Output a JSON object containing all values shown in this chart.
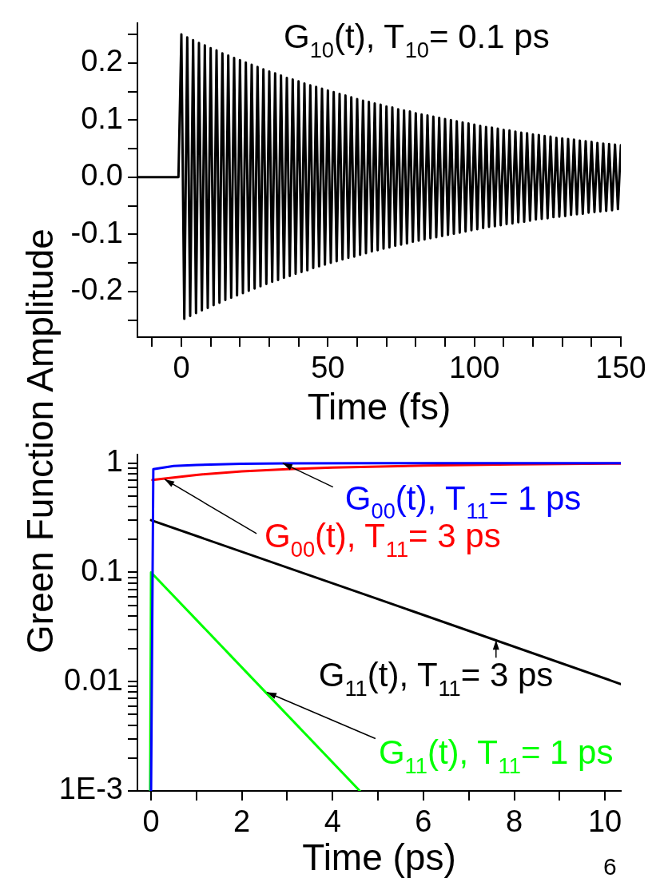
{
  "chart_data": [
    {
      "type": "line",
      "xlabel": "Time (fs)",
      "ylabel": "Green Function Amplitude",
      "marker": "none",
      "xlim": [
        -15,
        150
      ],
      "ylim": [
        -0.28,
        0.27
      ],
      "xticks": [
        {
          "value": -10,
          "label": null
        },
        0,
        {
          "value": 10,
          "label": null
        },
        {
          "value": 20,
          "label": null
        },
        {
          "value": 30,
          "label": null
        },
        {
          "value": 40,
          "label": null
        },
        50,
        {
          "value": 60,
          "label": null
        },
        {
          "value": 70,
          "label": null
        },
        {
          "value": 80,
          "label": null
        },
        {
          "value": 90,
          "label": null
        },
        100,
        {
          "value": 110,
          "label": null
        },
        {
          "value": 120,
          "label": null
        },
        {
          "value": 130,
          "label": null
        },
        {
          "value": 140,
          "label": null
        },
        150
      ],
      "yticks": [
        {
          "value": -0.25,
          "label": null
        },
        {
          "value": -0.2,
          "label": "-0.2"
        },
        {
          "value": -0.15,
          "label": null
        },
        {
          "value": -0.1,
          "label": "-0.1"
        },
        {
          "value": -0.05,
          "label": null
        },
        {
          "value": 0,
          "label": "0.0"
        },
        {
          "value": 0.05,
          "label": null
        },
        0.1,
        {
          "value": 0.15,
          "label": null
        },
        0.2,
        {
          "value": 0.25,
          "label": null
        }
      ],
      "annotations": [
        "G$_{10}$(t), T$_{10}$= 0.1 ps"
      ],
      "series": [
        {
          "color": "#000000",
          "x": [
            -15,
            -1,
            0,
            1,
            2,
            3,
            4,
            5,
            6,
            7,
            8,
            9,
            10,
            11,
            12,
            13,
            14,
            15,
            16,
            17,
            18,
            19,
            20,
            21,
            22,
            23,
            24,
            25,
            26,
            27,
            28,
            29,
            30,
            31,
            32,
            33,
            34,
            35,
            36,
            37,
            38,
            39,
            40,
            41,
            42,
            43,
            44,
            45,
            46,
            47,
            48,
            49,
            50,
            51,
            52,
            53,
            54,
            55,
            56,
            57,
            58,
            59,
            60,
            61,
            62,
            63,
            64,
            65,
            66,
            67,
            68,
            69,
            70,
            71,
            72,
            73,
            74,
            75,
            76,
            77,
            78,
            79,
            80,
            81,
            82,
            83,
            84,
            85,
            86,
            87,
            88,
            89,
            90,
            91,
            92,
            93,
            94,
            95,
            96,
            97,
            98,
            99,
            100,
            101,
            102,
            103,
            104,
            105,
            106,
            107,
            108,
            109,
            110,
            111,
            112,
            113,
            114,
            115,
            116,
            117,
            118,
            119,
            120,
            121,
            122,
            123,
            124,
            125,
            126,
            127,
            128,
            129,
            130,
            131,
            132,
            133,
            134,
            135,
            136,
            137,
            138,
            139,
            140,
            141,
            142,
            143,
            144,
            145,
            146,
            147,
            148,
            149,
            150
          ],
          "values": [
            0,
            0,
            0.25,
            -0.248,
            0.245,
            -0.243,
            0.24,
            -0.238,
            0.235,
            -0.233,
            0.231,
            -0.229,
            0.226,
            -0.224,
            0.222,
            -0.22,
            0.217,
            -0.215,
            0.213,
            -0.211,
            0.209,
            -0.207,
            0.205,
            -0.203,
            0.201,
            -0.199,
            0.197,
            -0.195,
            0.193,
            -0.191,
            0.189,
            -0.187,
            0.185,
            -0.183,
            0.182,
            -0.18,
            0.178,
            -0.176,
            0.174,
            -0.173,
            0.171,
            -0.169,
            0.168,
            -0.166,
            0.164,
            -0.163,
            0.161,
            -0.159,
            0.158,
            -0.156,
            0.155,
            -0.153,
            0.152,
            -0.15,
            0.149,
            -0.147,
            0.146,
            -0.144,
            0.143,
            -0.141,
            0.14,
            -0.139,
            0.137,
            -0.136,
            0.134,
            -0.133,
            0.132,
            -0.13,
            0.129,
            -0.128,
            0.127,
            -0.125,
            0.124,
            -0.123,
            0.122,
            -0.12,
            0.119,
            -0.118,
            0.117,
            -0.116,
            0.115,
            -0.113,
            0.112,
            -0.111,
            0.11,
            -0.109,
            0.108,
            -0.107,
            0.106,
            -0.105,
            0.104,
            -0.103,
            0.102,
            -0.101,
            0.1,
            -0.099,
            0.098,
            -0.097,
            0.096,
            -0.095,
            0.094,
            -0.093,
            0.092,
            -0.091,
            0.09,
            -0.089,
            0.088,
            -0.087,
            0.087,
            -0.086,
            0.085,
            -0.084,
            0.083,
            -0.082,
            0.082,
            -0.081,
            0.08,
            -0.079,
            0.078,
            -0.078,
            0.077,
            -0.076,
            0.075,
            -0.074,
            0.074,
            -0.073,
            0.072,
            -0.072,
            0.071,
            -0.07,
            0.069,
            -0.069,
            0.068,
            -0.068,
            0.067,
            -0.066,
            0.066,
            -0.065,
            0.064,
            -0.064,
            0.063,
            -0.062,
            0.062,
            -0.061,
            0.06,
            -0.06,
            0.059,
            -0.059,
            0.058,
            -0.058,
            0.057,
            -0.056,
            0.056
          ]
        }
      ]
    },
    {
      "type": "line",
      "xlabel": "Time (ps)",
      "log": "y",
      "marker": "none",
      "xlim": [
        -0.3,
        10.35
      ],
      "ylim": [
        0.001,
        1.2
      ],
      "xticks": [
        0,
        {
          "value": 1,
          "label": null
        },
        2,
        {
          "value": 3,
          "label": null
        },
        4,
        {
          "value": 5,
          "label": null
        },
        6,
        {
          "value": 7,
          "label": null
        },
        8,
        {
          "value": 9,
          "label": null
        },
        10
      ],
      "yticks": [
        {
          "value": 0.001,
          "label": "1E-3"
        },
        {
          "value": 0.002,
          "label": null
        },
        {
          "value": 0.003,
          "label": null
        },
        {
          "value": 0.004,
          "label": null
        },
        {
          "value": 0.005,
          "label": null
        },
        {
          "value": 0.006,
          "label": null
        },
        {
          "value": 0.007,
          "label": null
        },
        {
          "value": 0.008,
          "label": null
        },
        {
          "value": 0.009,
          "label": null
        },
        0.01,
        {
          "value": 0.02,
          "label": null
        },
        {
          "value": 0.03,
          "label": null
        },
        {
          "value": 0.04,
          "label": null
        },
        {
          "value": 0.05,
          "label": null
        },
        {
          "value": 0.06,
          "label": null
        },
        {
          "value": 0.07,
          "label": null
        },
        {
          "value": 0.08,
          "label": null
        },
        {
          "value": 0.09,
          "label": null
        },
        0.1,
        {
          "value": 0.2,
          "label": null
        },
        {
          "value": 0.3,
          "label": null
        },
        {
          "value": 0.4,
          "label": null
        },
        {
          "value": 0.5,
          "label": null
        },
        {
          "value": 0.6,
          "label": null
        },
        {
          "value": 0.7,
          "label": null
        },
        {
          "value": 0.8,
          "label": null
        },
        {
          "value": 0.9,
          "label": null
        },
        1
      ],
      "annotations": [
        {
          "text": "G$_{00}$(t), T$_{11}$= 1 ps",
          "x": 2.9,
          "y": 1.0
        },
        {
          "text": "G$_{00}$(t), T$_{11}$= 3 ps",
          "x": 0.3,
          "y": 0.71
        },
        {
          "text": "G$_{11}$(t), T$_{11}$= 3 ps",
          "x": 7.6,
          "y": 0.024
        },
        {
          "text": "G$_{11}$(t), T$_{11}$= 1 ps",
          "x": 2.55,
          "y": 0.008
        },
        "6"
      ],
      "series": [
        {
          "color": "#0000ff",
          "x": [
            0,
            0.05,
            0.5,
            1,
            2,
            3,
            5,
            10.35
          ],
          "values": [
            0.001,
            0.88,
            0.94,
            0.96,
            0.985,
            0.995,
            1,
            1
          ]
        },
        {
          "color": "#ff0000",
          "x": [
            0.03,
            1,
            2,
            3,
            4,
            6,
            8,
            10.35
          ],
          "values": [
            0.7,
            0.78,
            0.84,
            0.88,
            0.91,
            0.95,
            0.975,
            0.99
          ]
        },
        {
          "color": "#000000",
          "x": [
            0,
            5,
            10.35
          ],
          "values": [
            0.3,
            0.057,
            0.0095
          ]
        },
        {
          "color": "#00ff00",
          "x": [
            -0.02,
            0,
            2,
            4.6
          ],
          "values": [
            0.001,
            0.1,
            0.0135,
            0.001
          ]
        }
      ]
    }
  ]
}
